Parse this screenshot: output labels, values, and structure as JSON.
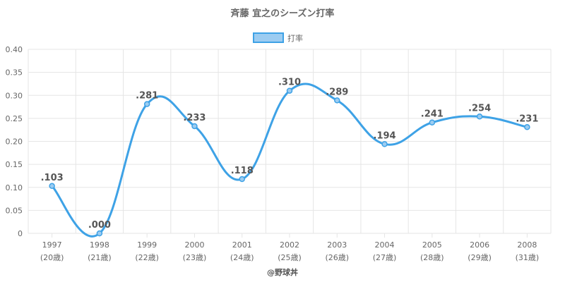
{
  "chart_data": {
    "type": "line",
    "title": "斉藤 宜之のシーズン打率",
    "legend": {
      "label": "打率",
      "position": "top"
    },
    "ylim": [
      0,
      0.4
    ],
    "yticks": [
      "0",
      "0.05",
      "0.10",
      "0.15",
      "0.20",
      "0.25",
      "0.30",
      "0.35",
      "0.40"
    ],
    "ytick_values": [
      0,
      0.05,
      0.1,
      0.15,
      0.2,
      0.25,
      0.3,
      0.35,
      0.4
    ],
    "categories": [
      "1997",
      "1998",
      "1999",
      "2000",
      "2001",
      "2002",
      "2003",
      "2004",
      "2005",
      "2006",
      "2008"
    ],
    "sublabels": [
      "(20歳)",
      "(21歳)",
      "(22歳)",
      "(23歳)",
      "(24歳)",
      "(25歳)",
      "(26歳)",
      "(27歳)",
      "(28歳)",
      "(29歳)",
      "(31歳)"
    ],
    "series": [
      {
        "name": "打率",
        "values": [
          0.103,
          0.0,
          0.281,
          0.233,
          0.118,
          0.31,
          0.289,
          0.194,
          0.241,
          0.254,
          0.231
        ],
        "labels": [
          ".103",
          ".000",
          ".281",
          ".233",
          ".118",
          ".310",
          ".289",
          ".194",
          ".241",
          ".254",
          ".231"
        ]
      }
    ],
    "grid": true,
    "colors": {
      "line": "#3ea2e6",
      "fill": "#9cccf1",
      "grid": "#e5e5e5"
    }
  },
  "footer": "@野球丼"
}
